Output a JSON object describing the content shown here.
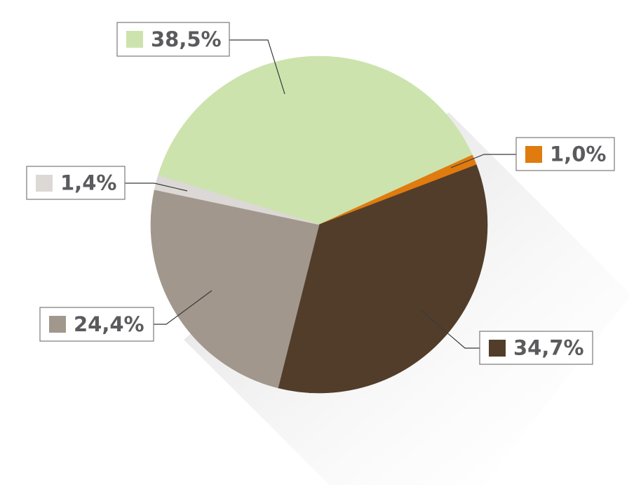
{
  "chart_data": {
    "type": "pie",
    "slices": [
      {
        "label": "38,5%",
        "value": 38.5,
        "color": "#cde3ad"
      },
      {
        "label": "1,0%",
        "value": 1.0,
        "color": "#e07b0f"
      },
      {
        "label": "34,7%",
        "value": 34.7,
        "color": "#523d2b"
      },
      {
        "label": "24,4%",
        "value": 24.4,
        "color": "#a1978d"
      },
      {
        "label": "1,4%",
        "value": 1.4,
        "color": "#dcd8d5"
      }
    ],
    "legend": "none"
  }
}
